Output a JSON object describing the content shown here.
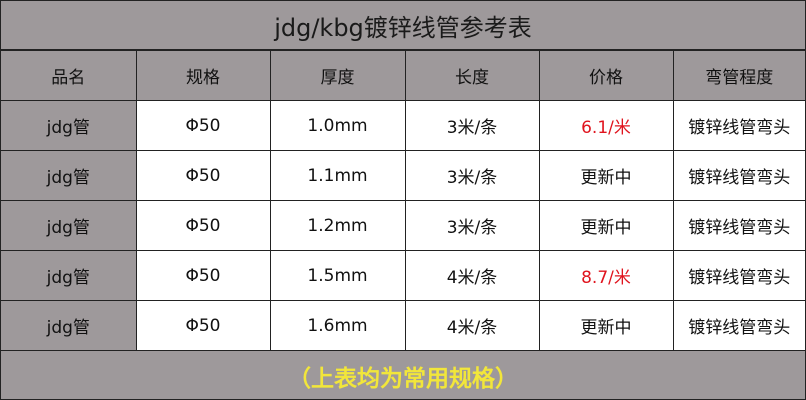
{
  "title": "jdg/kbg镀锌线管参考表",
  "headers": [
    "品名",
    "规格",
    "厚度",
    "长度",
    "价格",
    "弯管程度"
  ],
  "rows": [
    [
      "jdg管",
      "Φ50",
      "1.0mm",
      "3米/条",
      "6.1/米",
      "镀锌线管弯头"
    ],
    [
      "jdg管",
      "Φ50",
      "1.1mm",
      "3米/条",
      "更新中",
      "镀锌线管弯头"
    ],
    [
      "jdg管",
      "Φ50",
      "1.2mm",
      "3米/条",
      "更新中",
      "镀锌线管弯头"
    ],
    [
      "jdg管",
      "Φ50",
      "1.5mm",
      "4米/条",
      "8.7/米",
      "镀锌线管弯头"
    ],
    [
      "jdg管",
      "Φ50",
      "1.6mm",
      "4米/条",
      "更新中",
      "镀锌线管弯头"
    ]
  ],
  "footer": "（上表均为常用规格）",
  "colors": {
    "background": "#9e999b",
    "price_highlight": "#e0141e",
    "footer_text": "#f2e63a"
  }
}
